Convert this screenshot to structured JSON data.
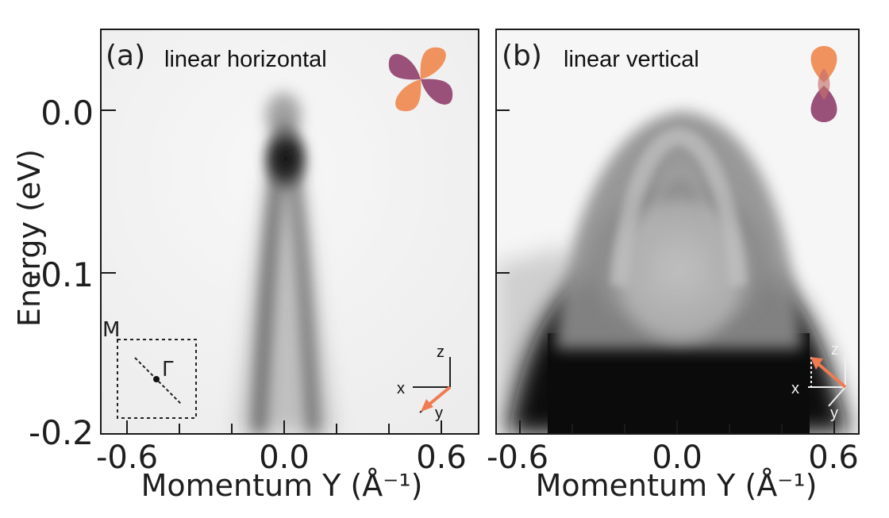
{
  "figure": {
    "y_label": "Energy (eV)"
  },
  "chart_data": [
    {
      "type": "heatmap",
      "panel_label": "(a)",
      "polarization": "linear horizontal",
      "xlabel": "Momentum Y (Å⁻¹)",
      "ylabel": "Energy (eV)",
      "xlim": [
        -0.75,
        0.75
      ],
      "ylim": [
        -0.2,
        0.05
      ],
      "x_ticks": [
        "-0.6",
        "0.0",
        "0.6"
      ],
      "y_ticks": [
        "0.0",
        "-0.1",
        "-0.2"
      ],
      "inset_labels": {
        "m_point": "M",
        "gamma_point": "Γ"
      },
      "axes_labels": {
        "x": "x",
        "y": "y",
        "z": "z"
      },
      "orbital_colors": [
        "#995079",
        "#f0925e"
      ],
      "arrow_color": "#f07a52"
    },
    {
      "type": "heatmap",
      "panel_label": "(b)",
      "polarization": "linear vertical",
      "xlabel": "Momentum Y (Å⁻¹)",
      "xlim": [
        -0.75,
        0.75
      ],
      "ylim": [
        -0.2,
        0.05
      ],
      "x_ticks": [
        "-0.6",
        "0.0",
        "0.6"
      ],
      "axes_labels": {
        "x": "x",
        "y": "y",
        "z": "z"
      },
      "orbital_colors": [
        "#f0925e",
        "#995079"
      ],
      "arrow_color": "#f07a52"
    }
  ]
}
